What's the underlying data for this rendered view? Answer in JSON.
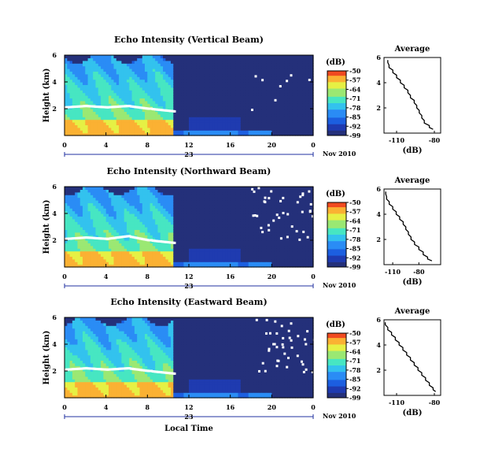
{
  "colors": {
    "background": "#ffffff",
    "axis": "#000000",
    "bright_band": "#ffffff",
    "profile_line": "#000000",
    "colormap": [
      "#24307a",
      "#1f3bb0",
      "#1c5fe0",
      "#2a8cf5",
      "#33c2ee",
      "#47e6c2",
      "#9be873",
      "#e6f044",
      "#fbb133",
      "#f04a20"
    ]
  },
  "common": {
    "ylabel": "Height (km)",
    "y_ticks": [
      "2",
      "4",
      "6"
    ],
    "x_ticks": [
      "0",
      "4",
      "8",
      "12",
      "16",
      "20",
      "0"
    ],
    "date_day": "23",
    "date_suffix": "Nov 2010",
    "cbar_unit": "(dB)",
    "cbar_ticks": [
      "-50",
      "-57",
      "-64",
      "-71",
      "-78",
      "-85",
      "-92",
      "-99"
    ],
    "avg_title": "Average",
    "avg_xticks": [
      "-110",
      "-80"
    ],
    "avg_xlabel": "(dB)",
    "avg_yticks": [
      "2",
      "4",
      "6"
    ],
    "xlabel": "Local Time"
  },
  "chart_data": [
    {
      "type": "heatmap",
      "title": "Echo Intensity (Vertical Beam)",
      "xlabel": "",
      "ylabel": "Height (km)",
      "x_unit": "local time (h)",
      "xlim": [
        0,
        24
      ],
      "ylim": [
        0,
        6
      ],
      "colorbar": {
        "label": "(dB)",
        "range": [
          -99,
          -50
        ],
        "ticks": [
          -50,
          -57,
          -64,
          -71,
          -78,
          -85,
          -92,
          -99
        ]
      },
      "bright_band_height_km": [
        2.1,
        2.2,
        2.1,
        2.2,
        2.0,
        1.8
      ],
      "bright_band_times_h": [
        0,
        2,
        4,
        6,
        8,
        10.5
      ],
      "echo_top_km": 5.8,
      "rain_end_h": 10.5,
      "noise_level_db": -99,
      "average_profile": {
        "title": "Average",
        "x_label": "(dB)",
        "xlim": [
          -120,
          -75
        ],
        "ylim": [
          0,
          6
        ],
        "height": [
          5.8,
          5.4,
          5.0,
          4.6,
          4.2,
          3.8,
          3.4,
          3.0,
          2.6,
          2.2,
          1.8,
          1.4,
          1.0,
          0.6,
          0.3
        ],
        "db": [
          -117,
          -116,
          -113,
          -110,
          -107,
          -104,
          -101,
          -99,
          -96,
          -94,
          -92,
          -90,
          -88,
          -84,
          -81
        ]
      }
    },
    {
      "type": "heatmap",
      "title": "Echo Intensity (Northward Beam)",
      "xlabel": "",
      "ylabel": "Height (km)",
      "x_unit": "local time (h)",
      "xlim": [
        0,
        24
      ],
      "ylim": [
        0,
        6
      ],
      "colorbar": {
        "label": "(dB)",
        "range": [
          -99,
          -50
        ],
        "ticks": [
          -50,
          -57,
          -64,
          -71,
          -78,
          -85,
          -92,
          -99
        ]
      },
      "bright_band_height_km": [
        2.1,
        2.2,
        2.1,
        2.3,
        2.0,
        1.8
      ],
      "bright_band_times_h": [
        0,
        2,
        4,
        6,
        8,
        10.5
      ],
      "echo_top_km": 5.8,
      "rain_end_h": 10.5,
      "noise_level_db": -99,
      "average_profile": {
        "title": "Average",
        "x_label": "(dB)",
        "xlim": [
          -120,
          -55
        ],
        "ylim": [
          0,
          6
        ],
        "height": [
          5.8,
          5.4,
          5.0,
          4.6,
          4.2,
          3.8,
          3.4,
          3.0,
          2.6,
          2.2,
          1.8,
          1.4,
          1.0,
          0.6,
          0.3
        ],
        "db": [
          -118,
          -117,
          -114,
          -110,
          -106,
          -102,
          -98,
          -95,
          -92,
          -89,
          -85,
          -80,
          -75,
          -70,
          -65
        ]
      }
    },
    {
      "type": "heatmap",
      "title": "Echo Intensity (Eastward Beam)",
      "xlabel": "Local Time",
      "ylabel": "Height (km)",
      "x_unit": "local time (h)",
      "xlim": [
        0,
        24
      ],
      "ylim": [
        0,
        6
      ],
      "colorbar": {
        "label": "(dB)",
        "range": [
          -99,
          -50
        ],
        "ticks": [
          -50,
          -57,
          -64,
          -71,
          -78,
          -85,
          -92,
          -99
        ]
      },
      "bright_band_height_km": [
        2.1,
        2.2,
        2.1,
        2.2,
        2.0,
        1.8
      ],
      "bright_band_times_h": [
        0,
        2,
        4,
        6,
        8,
        10.5
      ],
      "echo_top_km": 5.8,
      "rain_end_h": 10.5,
      "noise_level_db": -99,
      "average_profile": {
        "title": "Average",
        "x_label": "(dB)",
        "xlim": [
          -120,
          -75
        ],
        "ylim": [
          0,
          6
        ],
        "height": [
          5.8,
          5.4,
          5.0,
          4.6,
          4.2,
          3.8,
          3.4,
          3.0,
          2.6,
          2.2,
          1.8,
          1.4,
          1.0,
          0.6,
          0.3
        ],
        "db": [
          -119,
          -117,
          -114,
          -111,
          -108,
          -105,
          -102,
          -99,
          -96,
          -93,
          -90,
          -87,
          -84,
          -81,
          -79
        ]
      }
    }
  ]
}
